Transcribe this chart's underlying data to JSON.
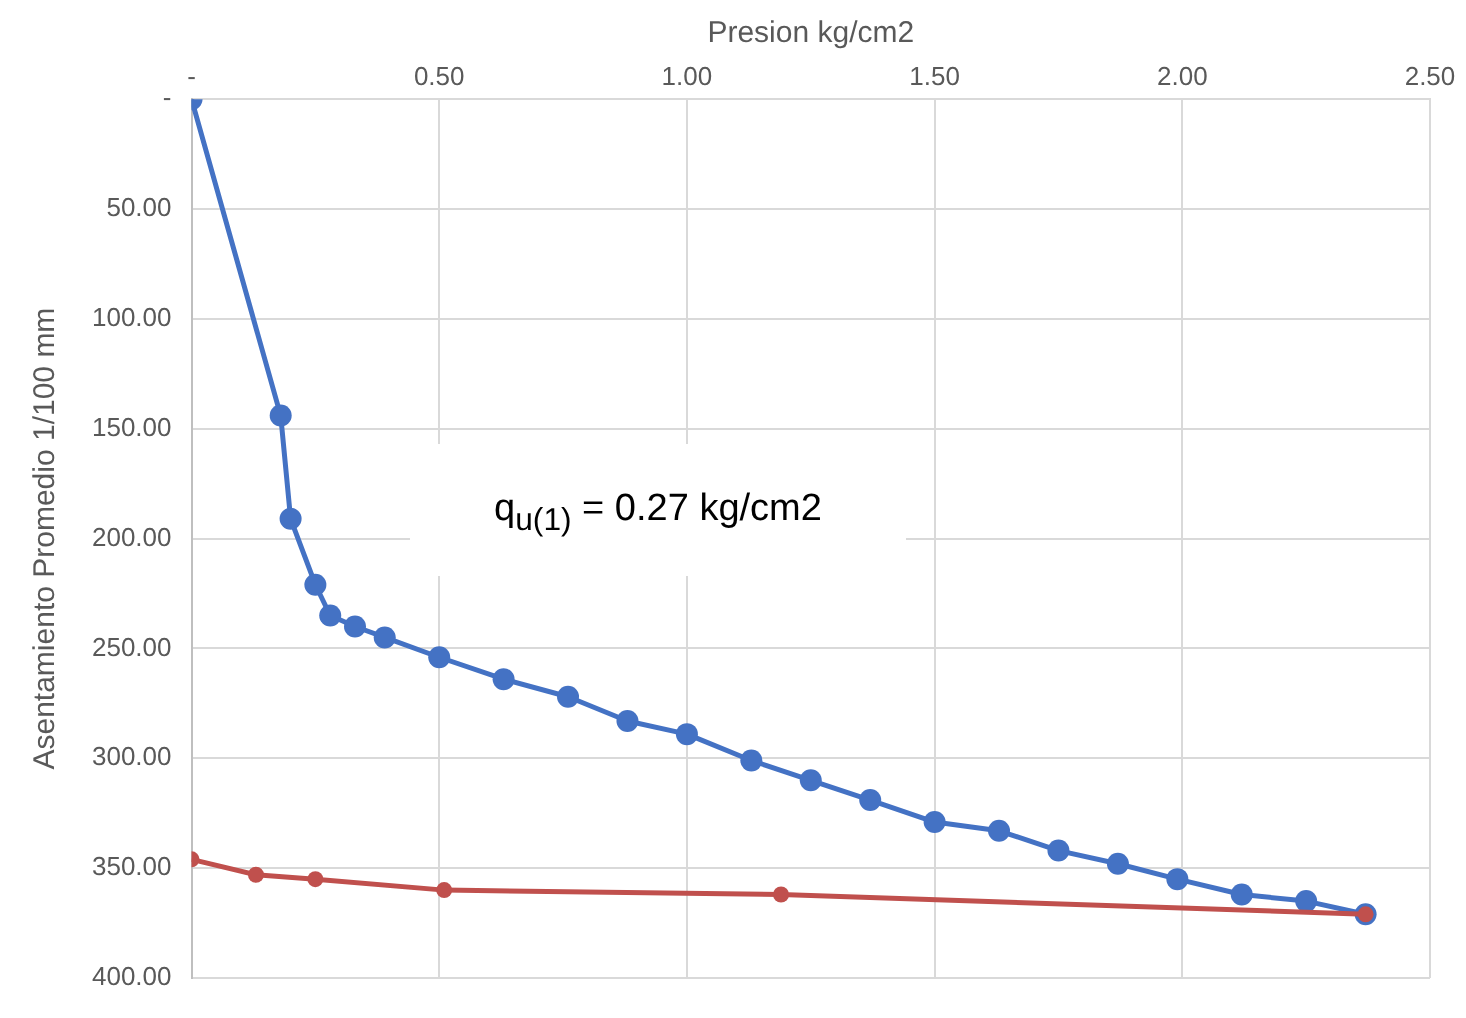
{
  "chart_data": {
    "type": "line",
    "xlabel": "Presion kg/cm2",
    "ylabel": "Asentamiento Promedio 1/100 mm",
    "annotations": [
      "q$_{u(1)}$ = 0.27 kg/cm2"
    ],
    "series": [
      {
        "color": "#4472c4",
        "x": [
          0,
          0.18,
          0.2,
          0.25,
          0.28,
          0.33,
          0.39,
          0.5,
          0.63,
          0.76,
          0.88,
          1.0,
          1.13,
          1.25,
          1.37,
          1.5,
          1.63,
          1.75,
          1.87,
          1.99,
          2.12,
          2.25,
          2.37
        ],
        "values": [
          0,
          144,
          191,
          221,
          235,
          240,
          245,
          254,
          264,
          272,
          283,
          289,
          301,
          310,
          319,
          329,
          333,
          342,
          348,
          355,
          362,
          365,
          371
        ]
      },
      {
        "color": "#c0504d",
        "x": [
          0,
          0.13,
          0.25,
          0.51,
          1.19,
          2.37
        ],
        "values": [
          346,
          353,
          355,
          360,
          362,
          371
        ]
      }
    ],
    "xlim": [
      0,
      2.5
    ],
    "xticks": [
      {
        "value": 0,
        "label": "-"
      },
      {
        "value": 0.5,
        "label": "0.50"
      },
      {
        "value": 1,
        "label": "1.00"
      },
      {
        "value": 1.5,
        "label": "1.50"
      },
      {
        "value": 2,
        "label": "2.00"
      },
      {
        "value": 2.5,
        "label": "2.50"
      }
    ],
    "ylim": [
      400,
      0
    ],
    "yticks": [
      {
        "value": 0,
        "label": "-"
      },
      {
        "value": 50,
        "label": "50.00"
      },
      {
        "value": 100,
        "label": "100.00"
      },
      {
        "value": 150,
        "label": "150.00"
      },
      {
        "value": 200,
        "label": "200.00"
      },
      {
        "value": 250,
        "label": "250.00"
      },
      {
        "value": 300,
        "label": "300.00"
      },
      {
        "value": 350,
        "label": "350.00"
      },
      {
        "value": 400,
        "label": "400.00"
      }
    ],
    "grid": true,
    "legend": false,
    "marker": "circle",
    "line_style": "solid"
  }
}
